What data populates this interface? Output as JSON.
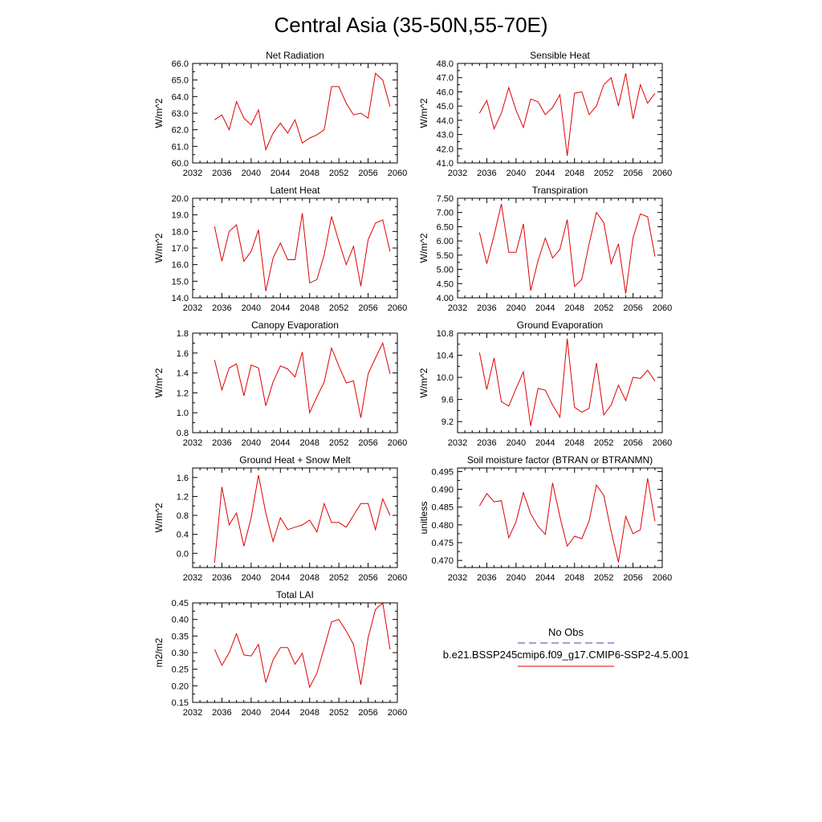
{
  "figure": {
    "title": "Central Asia (35-50N,55-70E)"
  },
  "legend": {
    "entries": [
      {
        "label": "No Obs",
        "color": "#4040a0",
        "style": "dashed"
      },
      {
        "label": "b.e21.BSSP245cmip6.f09_g17.CMIP6-SSP2-4.5.001",
        "color": "#e00000",
        "style": "solid"
      }
    ]
  },
  "chart_data": [
    {
      "type": "line",
      "title": "Net Radiation",
      "ylabel": "W/m^2",
      "xlim": [
        2032,
        2060
      ],
      "ylim": [
        60,
        66
      ],
      "xticks": [
        "2032",
        "2036",
        "2040",
        "2044",
        "2048",
        "2052",
        "2056",
        "2060"
      ],
      "yticks": [
        "60.0",
        "61.0",
        "62.0",
        "63.0",
        "64.0",
        "65.0",
        "66.0"
      ],
      "x": [
        2035,
        2036,
        2037,
        2038,
        2039,
        2040,
        2041,
        2042,
        2043,
        2044,
        2045,
        2046,
        2047,
        2048,
        2049,
        2050,
        2051,
        2052,
        2053,
        2054,
        2055,
        2056,
        2057,
        2058,
        2059
      ],
      "series": [
        {
          "color": "#e00000",
          "values": [
            62.6,
            62.9,
            62.0,
            63.7,
            62.7,
            62.3,
            63.2,
            60.8,
            61.8,
            62.4,
            61.8,
            62.6,
            61.2,
            61.5,
            61.7,
            62.0,
            64.6,
            64.6,
            63.6,
            62.9,
            63.0,
            62.7,
            65.4,
            65.0,
            63.4
          ]
        }
      ]
    },
    {
      "type": "line",
      "title": "Sensible Heat",
      "ylabel": "W/m^2",
      "xlim": [
        2032,
        2060
      ],
      "ylim": [
        41,
        48
      ],
      "xticks": [
        "2032",
        "2036",
        "2040",
        "2044",
        "2048",
        "2052",
        "2056",
        "2060"
      ],
      "yticks": [
        "41.0",
        "42.0",
        "43.0",
        "44.0",
        "45.0",
        "46.0",
        "47.0",
        "48.0"
      ],
      "x": [
        2035,
        2036,
        2037,
        2038,
        2039,
        2040,
        2041,
        2042,
        2043,
        2044,
        2045,
        2046,
        2047,
        2048,
        2049,
        2050,
        2051,
        2052,
        2053,
        2054,
        2055,
        2056,
        2057,
        2058,
        2059
      ],
      "series": [
        {
          "color": "#e00000",
          "values": [
            44.5,
            45.4,
            43.4,
            44.5,
            46.3,
            44.7,
            43.5,
            45.5,
            45.3,
            44.4,
            44.9,
            45.8,
            41.5,
            45.9,
            46.0,
            44.4,
            45.0,
            46.5,
            47.0,
            45.0,
            47.3,
            44.1,
            46.5,
            45.2,
            45.9
          ]
        }
      ]
    },
    {
      "type": "line",
      "title": "Latent Heat",
      "ylabel": "W/m^2",
      "xlim": [
        2032,
        2060
      ],
      "ylim": [
        14,
        20
      ],
      "xticks": [
        "2032",
        "2036",
        "2040",
        "2044",
        "2048",
        "2052",
        "2056",
        "2060"
      ],
      "yticks": [
        "14.0",
        "15.0",
        "16.0",
        "17.0",
        "18.0",
        "19.0",
        "20.0"
      ],
      "x": [
        2035,
        2036,
        2037,
        2038,
        2039,
        2040,
        2041,
        2042,
        2043,
        2044,
        2045,
        2046,
        2047,
        2048,
        2049,
        2050,
        2051,
        2052,
        2053,
        2054,
        2055,
        2056,
        2057,
        2058,
        2059
      ],
      "series": [
        {
          "color": "#e00000",
          "values": [
            18.3,
            16.2,
            18.0,
            18.4,
            16.2,
            16.8,
            18.1,
            14.4,
            16.4,
            17.3,
            16.3,
            16.3,
            19.1,
            14.9,
            15.1,
            16.6,
            18.9,
            17.4,
            16.0,
            17.1,
            14.7,
            17.5,
            18.5,
            18.7,
            16.8
          ]
        }
      ]
    },
    {
      "type": "line",
      "title": "Transpiration",
      "ylabel": "W/m^2",
      "xlim": [
        2032,
        2060
      ],
      "ylim": [
        4,
        7.5
      ],
      "xticks": [
        "2032",
        "2036",
        "2040",
        "2044",
        "2048",
        "2052",
        "2056",
        "2060"
      ],
      "yticks": [
        "4.00",
        "4.50",
        "5.00",
        "5.50",
        "6.00",
        "6.50",
        "7.00",
        "7.50"
      ],
      "x": [
        2035,
        2036,
        2037,
        2038,
        2039,
        2040,
        2041,
        2042,
        2043,
        2044,
        2045,
        2046,
        2047,
        2048,
        2049,
        2050,
        2051,
        2052,
        2053,
        2054,
        2055,
        2056,
        2057,
        2058,
        2059
      ],
      "series": [
        {
          "color": "#e00000",
          "values": [
            6.3,
            5.2,
            6.2,
            7.3,
            5.6,
            5.6,
            6.6,
            4.25,
            5.3,
            6.1,
            5.4,
            5.7,
            6.75,
            4.4,
            4.65,
            5.9,
            7.0,
            6.65,
            5.2,
            5.9,
            4.15,
            6.1,
            6.95,
            6.85,
            5.45
          ]
        }
      ]
    },
    {
      "type": "line",
      "title": "Canopy Evaporation",
      "ylabel": "W/m^2",
      "xlim": [
        2032,
        2060
      ],
      "ylim": [
        0.8,
        1.8
      ],
      "xticks": [
        "2032",
        "2036",
        "2040",
        "2044",
        "2048",
        "2052",
        "2056",
        "2060"
      ],
      "yticks": [
        "0.8",
        "1.0",
        "1.2",
        "1.4",
        "1.6",
        "1.8"
      ],
      "x": [
        2035,
        2036,
        2037,
        2038,
        2039,
        2040,
        2041,
        2042,
        2043,
        2044,
        2045,
        2046,
        2047,
        2048,
        2049,
        2050,
        2051,
        2052,
        2053,
        2054,
        2055,
        2056,
        2057,
        2058,
        2059
      ],
      "series": [
        {
          "color": "#e00000",
          "values": [
            1.53,
            1.23,
            1.45,
            1.49,
            1.17,
            1.48,
            1.45,
            1.07,
            1.31,
            1.47,
            1.44,
            1.36,
            1.61,
            1.0,
            1.16,
            1.31,
            1.65,
            1.47,
            1.3,
            1.32,
            0.95,
            1.39,
            1.55,
            1.7,
            1.39
          ]
        }
      ]
    },
    {
      "type": "line",
      "title": "Ground Evaporation",
      "ylabel": "W/m^2",
      "xlim": [
        2032,
        2060
      ],
      "ylim": [
        9.0,
        10.8
      ],
      "xticks": [
        "2032",
        "2036",
        "2040",
        "2044",
        "2048",
        "2052",
        "2056",
        "2060"
      ],
      "yticks": [
        "9.2",
        "9.6",
        "10.0",
        "10.4",
        "10.8"
      ],
      "x": [
        2035,
        2036,
        2037,
        2038,
        2039,
        2040,
        2041,
        2042,
        2043,
        2044,
        2045,
        2046,
        2047,
        2048,
        2049,
        2050,
        2051,
        2052,
        2053,
        2054,
        2055,
        2056,
        2057,
        2058,
        2059
      ],
      "series": [
        {
          "color": "#e00000",
          "values": [
            10.45,
            9.78,
            10.35,
            9.56,
            9.48,
            9.8,
            10.1,
            9.12,
            9.8,
            9.77,
            9.5,
            9.28,
            10.7,
            9.46,
            9.37,
            9.44,
            10.26,
            9.32,
            9.5,
            9.86,
            9.58,
            10.0,
            9.98,
            10.13,
            9.93
          ]
        }
      ]
    },
    {
      "type": "line",
      "title": "Ground Heat + Snow Melt",
      "ylabel": "W/m^2",
      "xlim": [
        2032,
        2060
      ],
      "ylim": [
        -0.3,
        1.8
      ],
      "xticks": [
        "2032",
        "2036",
        "2040",
        "2044",
        "2048",
        "2052",
        "2056",
        "2060"
      ],
      "yticks": [
        "0.0",
        "0.4",
        "0.8",
        "1.2",
        "1.6"
      ],
      "x": [
        2035,
        2036,
        2037,
        2038,
        2039,
        2040,
        2041,
        2042,
        2043,
        2044,
        2045,
        2046,
        2047,
        2048,
        2049,
        2050,
        2051,
        2052,
        2053,
        2054,
        2055,
        2056,
        2057,
        2058,
        2059
      ],
      "series": [
        {
          "color": "#e00000",
          "values": [
            -0.2,
            1.4,
            0.6,
            0.85,
            0.15,
            0.75,
            1.65,
            0.85,
            0.25,
            0.75,
            0.5,
            0.55,
            0.6,
            0.7,
            0.45,
            1.05,
            0.65,
            0.65,
            0.55,
            0.8,
            1.05,
            1.05,
            0.5,
            1.15,
            0.8
          ]
        }
      ]
    },
    {
      "type": "line",
      "title": "Soil moisture factor (BTRAN or BTRANMN)",
      "ylabel": "unitless",
      "xlim": [
        2032,
        2060
      ],
      "ylim": [
        0.468,
        0.496
      ],
      "xticks": [
        "2032",
        "2036",
        "2040",
        "2044",
        "2048",
        "2052",
        "2056",
        "2060"
      ],
      "yticks": [
        "0.470",
        "0.475",
        "0.480",
        "0.485",
        "0.490",
        "0.495"
      ],
      "x": [
        2035,
        2036,
        2037,
        2038,
        2039,
        2040,
        2041,
        2042,
        2043,
        2044,
        2045,
        2046,
        2047,
        2048,
        2049,
        2050,
        2051,
        2052,
        2053,
        2054,
        2055,
        2056,
        2057,
        2058,
        2059
      ],
      "series": [
        {
          "color": "#e00000",
          "values": [
            0.4853,
            0.4888,
            0.4865,
            0.4868,
            0.4764,
            0.4809,
            0.4891,
            0.4831,
            0.4796,
            0.4773,
            0.4918,
            0.4823,
            0.474,
            0.4768,
            0.4761,
            0.4811,
            0.4912,
            0.4883,
            0.4782,
            0.4695,
            0.4824,
            0.4775,
            0.4786,
            0.4931,
            0.481
          ]
        }
      ]
    },
    {
      "type": "line",
      "title": "Total LAI",
      "ylabel": "m2/m2",
      "xlim": [
        2032,
        2060
      ],
      "ylim": [
        0.15,
        0.45
      ],
      "xticks": [
        "2032",
        "2036",
        "2040",
        "2044",
        "2048",
        "2052",
        "2056",
        "2060"
      ],
      "yticks": [
        "0.15",
        "0.20",
        "0.25",
        "0.30",
        "0.35",
        "0.40",
        "0.45"
      ],
      "x": [
        2035,
        2036,
        2037,
        2038,
        2039,
        2040,
        2041,
        2042,
        2043,
        2044,
        2045,
        2046,
        2047,
        2048,
        2049,
        2050,
        2051,
        2052,
        2053,
        2054,
        2055,
        2056,
        2057,
        2058,
        2059
      ],
      "series": [
        {
          "color": "#e00000",
          "values": [
            0.31,
            0.262,
            0.3,
            0.357,
            0.293,
            0.29,
            0.325,
            0.21,
            0.278,
            0.315,
            0.315,
            0.265,
            0.298,
            0.196,
            0.238,
            0.315,
            0.393,
            0.4,
            0.365,
            0.325,
            0.203,
            0.345,
            0.43,
            0.45,
            0.31
          ]
        }
      ]
    }
  ]
}
